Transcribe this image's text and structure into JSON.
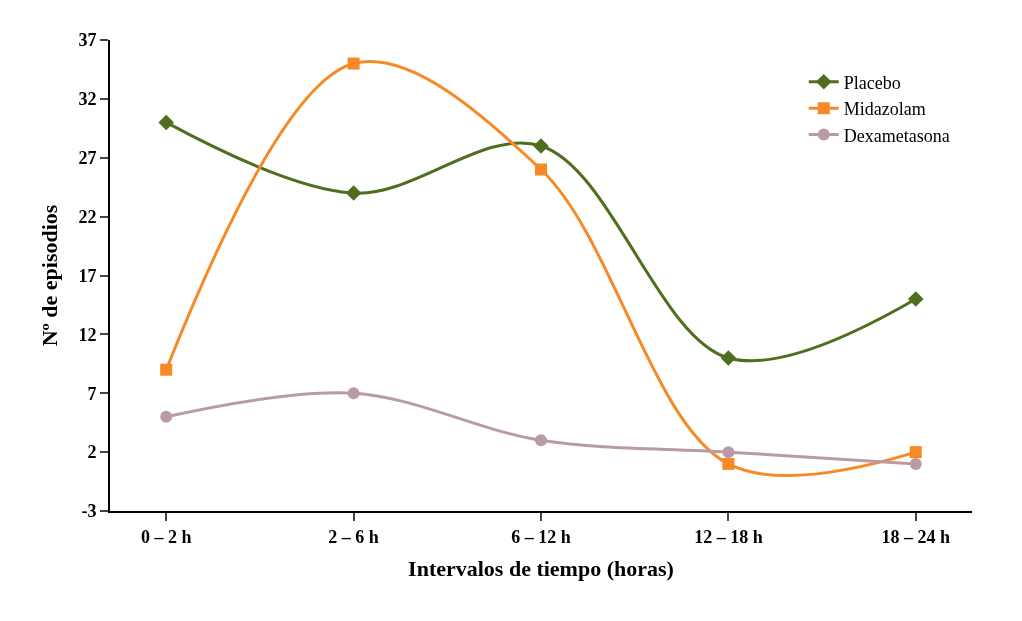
{
  "chart_data": {
    "type": "line",
    "xlabel": "Intervalos de tiempo (horas)",
    "ylabel": "Nº de episodios",
    "categories": [
      "0 – 2 h",
      "2 – 6 h",
      "6 – 12 h",
      "12 – 18 h",
      "18 – 24 h"
    ],
    "series": [
      {
        "name": "Placebo",
        "color": "#4f6f1e",
        "marker": "diamond",
        "values": [
          30,
          24,
          28,
          10,
          15
        ]
      },
      {
        "name": "Midazolam",
        "color": "#f58a27",
        "marker": "square",
        "values": [
          9,
          35,
          26,
          1,
          2
        ]
      },
      {
        "name": "Dexametasona",
        "color": "#b99aa6",
        "marker": "circle",
        "values": [
          5,
          7,
          3,
          2,
          1
        ]
      }
    ],
    "ylim": [
      -3,
      37
    ],
    "yticks": [
      -3,
      2,
      7,
      12,
      17,
      22,
      27,
      32,
      37
    ],
    "legend": "top right"
  }
}
